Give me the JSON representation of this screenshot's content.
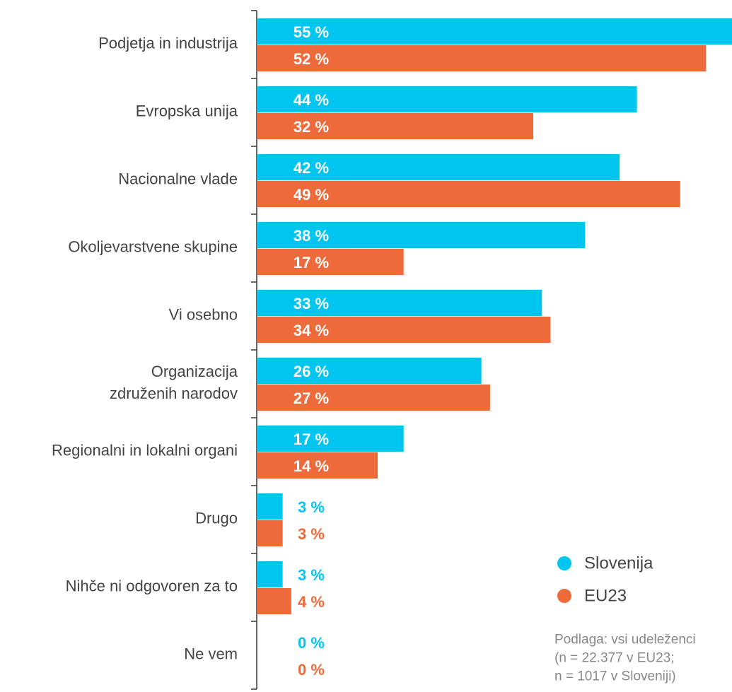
{
  "chart_data": {
    "type": "bar",
    "orientation": "horizontal",
    "categories": [
      "Podjetja in industrija",
      "Evropska unija",
      "Nacionalne vlade",
      "Okoljevarstvene skupine",
      "Vi osebno",
      "Organizacija\nzdruženih narodov",
      "Regionalni in lokalni organi",
      "Drugo",
      "Nihče ni odgovoren za to",
      "Ne vem"
    ],
    "series": [
      {
        "name": "Slovenija",
        "color": "#00c5ee",
        "values": [
          55,
          44,
          42,
          38,
          33,
          26,
          17,
          3,
          3,
          0
        ],
        "value_labels": [
          "55 %",
          "44 %",
          "42 %",
          "38 %",
          "33 %",
          "26 %",
          "17 %",
          "3 %",
          "3 %",
          "0 %"
        ]
      },
      {
        "name": "EU23",
        "color": "#ee6a3a",
        "values": [
          52,
          32,
          49,
          17,
          34,
          27,
          14,
          3,
          4,
          0
        ],
        "value_labels": [
          "52 %",
          "32 %",
          "49 %",
          "17 %",
          "34 %",
          "27 %",
          "14 %",
          "3 %",
          "4 %",
          "0 %"
        ]
      }
    ],
    "xlim": [
      0,
      55
    ],
    "legend": "lower right",
    "note": [
      "Podlaga: vsi udeleženci",
      "(n = 22.377 v EU23;",
      "n = 1017 v Sloveniji)"
    ]
  }
}
